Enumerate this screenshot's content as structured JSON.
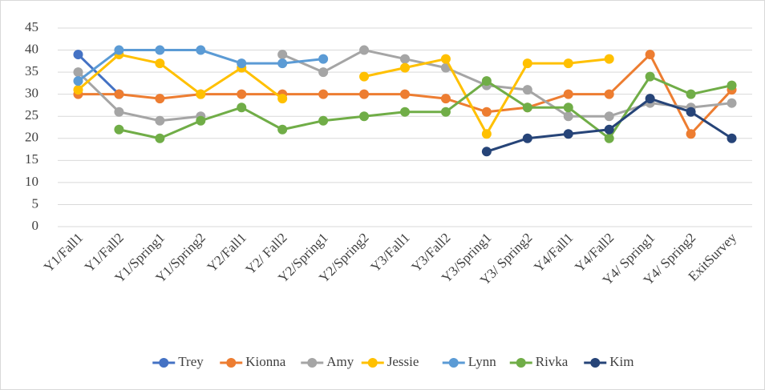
{
  "chart_data": {
    "type": "line",
    "categories": [
      "Y1/Fall1",
      "Y1/Fall2",
      "Y1/Spring1",
      "Y1/Spring2",
      "Y2/Fall1",
      "Y2/ Fall2",
      "Y2/Spring1",
      "Y2/Spring2",
      "Y3/Fall1",
      "Y3/Fall2",
      "Y3/Spring1",
      "Y3/ Spring2",
      "Y4/Fall1",
      "Y4/Fall2",
      "Y4/ Spring1",
      "Y4/ Spring2",
      "ExitSurvey"
    ],
    "series": [
      {
        "name": "Trey",
        "color": "#4472c4",
        "values": [
          39,
          30,
          null,
          null,
          null,
          null,
          null,
          null,
          null,
          null,
          null,
          null,
          null,
          null,
          null,
          null,
          null
        ]
      },
      {
        "name": "Kionna",
        "color": "#ed7d31",
        "values": [
          30,
          30,
          29,
          30,
          30,
          30,
          30,
          30,
          30,
          29,
          26,
          27,
          30,
          30,
          39,
          21,
          31
        ]
      },
      {
        "name": "Amy",
        "color": "#a5a5a5",
        "values": [
          35,
          26,
          24,
          25,
          null,
          39,
          35,
          40,
          38,
          36,
          32,
          31,
          25,
          25,
          28,
          27,
          28
        ]
      },
      {
        "name": "Jessie",
        "color": "#ffc000",
        "values": [
          31,
          39,
          37,
          30,
          36,
          29,
          null,
          34,
          36,
          38,
          21,
          37,
          37,
          38,
          null,
          null,
          null
        ]
      },
      {
        "name": "Lynn",
        "color": "#5b9bd5",
        "values": [
          33,
          40,
          40,
          40,
          37,
          37,
          38,
          null,
          null,
          null,
          null,
          null,
          null,
          null,
          null,
          null,
          null
        ]
      },
      {
        "name": "Rivka",
        "color": "#70ad47",
        "values": [
          null,
          22,
          20,
          24,
          27,
          22,
          24,
          25,
          26,
          26,
          33,
          27,
          27,
          20,
          34,
          30,
          32
        ]
      },
      {
        "name": "Kim",
        "color": "#264478",
        "values": [
          null,
          null,
          null,
          null,
          null,
          null,
          null,
          null,
          null,
          null,
          17,
          20,
          21,
          22,
          29,
          26,
          20
        ]
      }
    ],
    "ylim": [
      0,
      45
    ],
    "yticks": [
      0,
      5,
      10,
      15,
      20,
      25,
      30,
      35,
      40,
      45
    ],
    "grid": true,
    "legend": "bottom"
  }
}
